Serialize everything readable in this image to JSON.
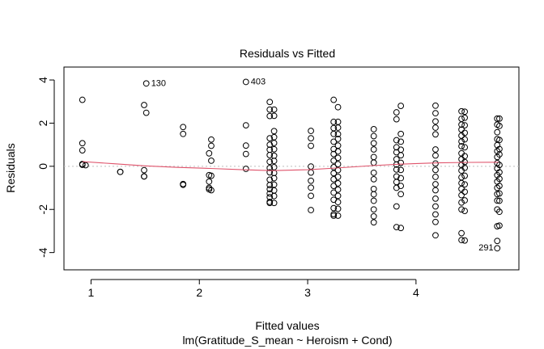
{
  "chart_data": {
    "type": "scatter",
    "title": "Residuals vs Fitted",
    "xlabel": "Fitted values",
    "subtitle": "lm(Gratitude_S_mean ~ Heroism + Cond)",
    "ylabel": "Residuals",
    "xlim": [
      0.75,
      4.95
    ],
    "ylim": [
      -4.8,
      4.6
    ],
    "x_ticks": [
      1,
      2,
      3,
      4
    ],
    "y_ticks": [
      -4,
      -2,
      0,
      2,
      4
    ],
    "grid": false,
    "reference_line": 0,
    "smooth_color": "#df536b",
    "reference_color": "#bebebe",
    "point_color": "#000000",
    "annotations": [
      {
        "label": "130",
        "x": 1.51,
        "y": 3.84
      },
      {
        "label": "403",
        "x": 2.43,
        "y": 3.91
      },
      {
        "label": "291",
        "x": 4.76,
        "y": -3.78
      }
    ],
    "smooth": {
      "x": [
        0.92,
        1.2,
        1.5,
        1.8,
        2.1,
        2.4,
        2.67,
        3.0,
        3.26,
        3.6,
        3.85,
        4.2,
        4.5,
        4.76
      ],
      "y": [
        0.22,
        0.12,
        0.02,
        -0.05,
        -0.1,
        -0.16,
        -0.2,
        -0.16,
        -0.08,
        0.03,
        0.1,
        0.16,
        0.18,
        0.19
      ]
    },
    "points": [
      {
        "x": 0.92,
        "y": [
          3.08,
          1.07,
          0.74,
          0.1,
          0.1,
          0.07
        ]
      },
      {
        "x": 0.95,
        "y": [
          0.05
        ]
      },
      {
        "x": 1.27,
        "y": [
          -0.26,
          -0.26
        ]
      },
      {
        "x": 1.49,
        "y": [
          2.84,
          -0.18,
          -0.47,
          -0.47
        ]
      },
      {
        "x": 1.51,
        "y": [
          3.84,
          2.48
        ]
      },
      {
        "x": 1.85,
        "y": [
          1.82,
          1.5,
          -0.82,
          -0.86
        ]
      },
      {
        "x": 2.09,
        "y": [
          0.6,
          -0.41,
          -0.71,
          -1.0,
          -1.07
        ]
      },
      {
        "x": 2.11,
        "y": [
          1.24,
          0.95,
          0.26,
          -0.44,
          -1.11
        ]
      },
      {
        "x": 2.43,
        "y": [
          3.91,
          1.9,
          0.96,
          0.57,
          -0.12
        ]
      },
      {
        "x": 2.65,
        "y": [
          2.98,
          2.63,
          2.33,
          1.3,
          1.0,
          0.77,
          0.52,
          0.21,
          -0.08,
          -0.28,
          -0.62,
          -0.87,
          -1.06,
          -1.26,
          -1.43,
          -1.65,
          -1.7
        ]
      },
      {
        "x": 2.69,
        "y": [
          2.63,
          2.34,
          1.63,
          1.35,
          1.08,
          0.79,
          0.49,
          0.25,
          -0.04,
          -0.31,
          -0.55,
          -0.85,
          -1.12,
          -1.38,
          -1.7
        ]
      },
      {
        "x": 3.03,
        "y": [
          1.64,
          1.3,
          0.95,
          -0.01,
          -0.29,
          -0.67,
          -0.99,
          -1.37,
          -2.03
        ]
      },
      {
        "x": 3.24,
        "y": [
          3.08,
          2.06,
          1.77,
          1.5,
          1.14,
          0.8,
          0.57,
          0.26,
          -0.04,
          -0.32,
          -0.6,
          -0.91,
          -1.22,
          -1.55,
          -1.94,
          -2.22,
          -2.29
        ]
      },
      {
        "x": 3.28,
        "y": [
          2.74,
          2.06,
          1.79,
          1.49,
          1.27,
          0.96,
          0.69,
          0.39,
          0.1,
          -0.18,
          -0.49,
          -0.79,
          -1.08,
          -1.37,
          -1.66,
          -1.97,
          -2.29
        ]
      },
      {
        "x": 3.61,
        "y": [
          1.72,
          1.4,
          1.07,
          0.78,
          0.43,
          0.17,
          -0.3,
          -0.6,
          -1.05,
          -1.3,
          -1.6,
          -2.0,
          -2.32,
          -2.6
        ]
      },
      {
        "x": 3.82,
        "y": [
          2.5,
          2.18,
          1.21,
          0.88,
          0.65,
          0.33,
          0.08,
          -0.15,
          -0.47,
          -0.73,
          -1.0,
          -1.86,
          -2.82
        ]
      },
      {
        "x": 3.86,
        "y": [
          2.8,
          1.5,
          1.14,
          0.77,
          0.51,
          0.16,
          -0.17,
          -0.55,
          -0.91,
          -1.29,
          -2.86
        ]
      },
      {
        "x": 4.18,
        "y": [
          2.81,
          2.46,
          2.08,
          1.79,
          1.48,
          0.78,
          0.5,
          0.13,
          -0.17,
          -0.49,
          -0.83,
          -1.11,
          -1.5,
          -1.86,
          -2.23,
          -2.58,
          -3.2
        ]
      },
      {
        "x": 4.42,
        "y": [
          2.55,
          2.2,
          1.93,
          1.7,
          1.42,
          1.15,
          0.93,
          0.6,
          0.33,
          0.06,
          -0.2,
          -0.51,
          -0.78,
          -1.05,
          -1.34,
          -1.68,
          -2.0,
          -3.1,
          -3.42
        ]
      },
      {
        "x": 4.45,
        "y": [
          2.53,
          2.25,
          1.9,
          1.55,
          1.25,
          0.88,
          0.47,
          0.2,
          -0.07,
          -0.44,
          -0.84,
          -1.18,
          -1.58,
          -2.07,
          -3.44
        ]
      },
      {
        "x": 4.75,
        "y": [
          2.21,
          1.93,
          1.58,
          1.26,
          0.98,
          0.7,
          0.43,
          0.15,
          -0.1,
          -0.41,
          -0.71,
          -1.0,
          -1.29,
          -1.59,
          -2.0,
          -2.78,
          -3.46,
          -3.8
        ]
      },
      {
        "x": 4.77,
        "y": [
          2.21,
          1.87,
          1.22,
          0.8,
          0.55,
          0.06,
          -0.28,
          -0.58,
          -0.91,
          -1.26,
          -1.6,
          -2.11,
          -2.75
        ]
      }
    ]
  }
}
